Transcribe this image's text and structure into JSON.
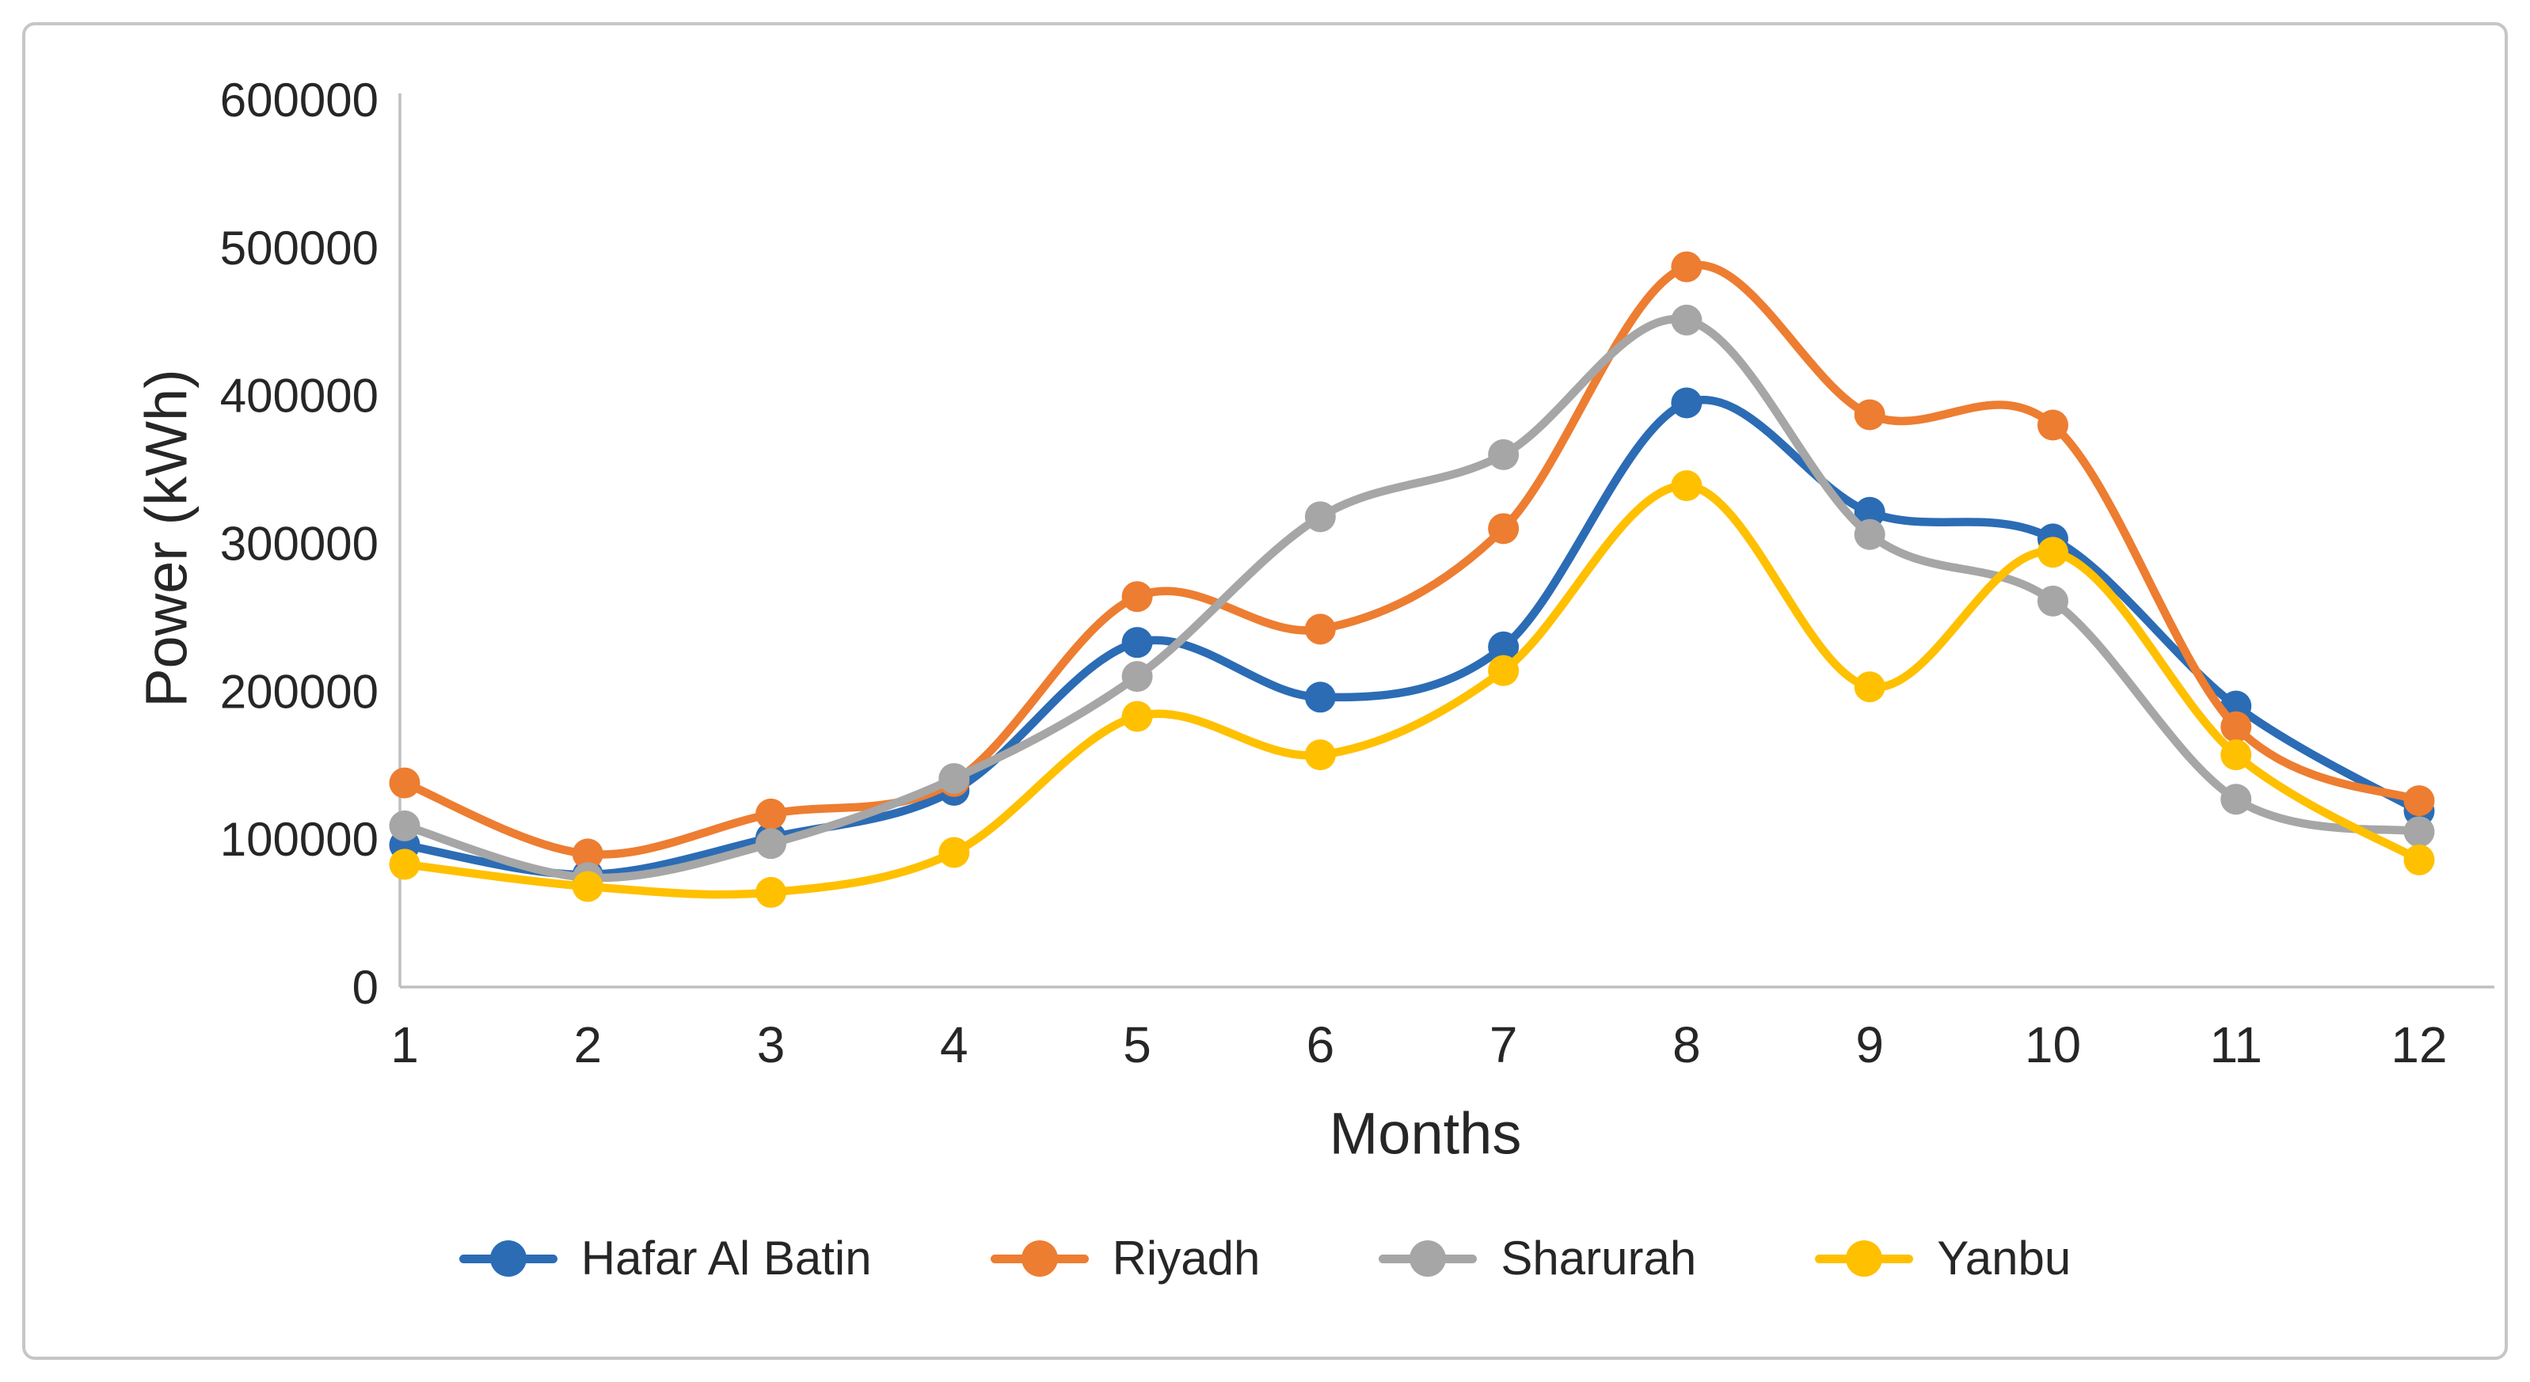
{
  "chart_data": {
    "type": "line",
    "title": "",
    "xlabel": "Months",
    "ylabel": "Power (kWh)",
    "x": [
      1,
      2,
      3,
      4,
      5,
      6,
      7,
      8,
      9,
      10,
      11,
      12
    ],
    "x_tick_labels": [
      "1",
      "2",
      "3",
      "4",
      "5",
      "6",
      "7",
      "8",
      "9",
      "10",
      "11",
      "12"
    ],
    "y_ticks": [
      0,
      100000,
      200000,
      300000,
      400000,
      500000,
      600000
    ],
    "y_tick_labels": [
      "0",
      "100000",
      "200000",
      "300000",
      "400000",
      "500000",
      "600000"
    ],
    "ylim": [
      0,
      600000
    ],
    "grid": false,
    "smooth_lines": true,
    "marker": "circle",
    "legend_position": "bottom",
    "axis_line_color": "#bfbfbf",
    "text_color": "#262626",
    "series": [
      {
        "name": "Hafar Al Batin",
        "color": "#2b6cb5",
        "values": [
          96000,
          76000,
          101000,
          133000,
          233000,
          196000,
          230000,
          395000,
          321000,
          303000,
          190000,
          119000
        ]
      },
      {
        "name": "Riyadh",
        "color": "#ed7d31",
        "values": [
          138000,
          90000,
          117000,
          139000,
          264000,
          242000,
          310000,
          487000,
          387000,
          380000,
          176000,
          126000
        ]
      },
      {
        "name": "Sharurah",
        "color": "#a6a6a6",
        "values": [
          109000,
          74000,
          97000,
          141000,
          210000,
          318000,
          360000,
          451000,
          306000,
          261000,
          127000,
          105000
        ]
      },
      {
        "name": "Yanbu",
        "color": "#ffc000",
        "values": [
          83000,
          68000,
          64000,
          91000,
          183000,
          157000,
          214000,
          339000,
          203000,
          294000,
          157000,
          86000
        ]
      }
    ]
  }
}
